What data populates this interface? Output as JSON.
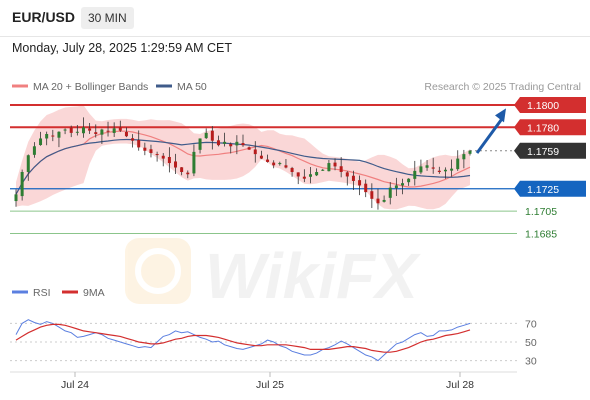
{
  "header": {
    "symbol": "EUR/USD",
    "timeframe": "30 MIN"
  },
  "datetime": "Monday, July 28, 2025 1:29:59 AM CET",
  "legend": {
    "ma20_label": "MA 20 + Bollinger Bands",
    "ma50_label": "MA 50",
    "credit": "Research © 2025 Trading Central"
  },
  "colors": {
    "up": "#2e7d32",
    "down": "#b71c1c",
    "resistance": "#d32f2f",
    "support": "#1565c0",
    "target": "#2e7d32",
    "ma20": "#f08080",
    "ma50": "#3f5b8a",
    "band": "#f8caca",
    "arrow": "#1e5aa8",
    "rsi": "#5b7fe0",
    "rsi_ma": "#d32f2f"
  },
  "chart_data": [
    {
      "type": "candlestick",
      "x_ticks": [
        "Jul 24",
        "Jul 25",
        "Jul 28"
      ],
      "ylim": [
        1.1638,
        1.1808
      ],
      "levels": [
        {
          "label": "1.1800",
          "value": 1.18,
          "kind": "resistance"
        },
        {
          "label": "1.1780",
          "value": 1.178,
          "kind": "resistance"
        },
        {
          "label": "1.1759",
          "value": 1.1759,
          "kind": "current"
        },
        {
          "label": "1.1725",
          "value": 1.1725,
          "kind": "support"
        },
        {
          "label": "1.1705",
          "value": 1.1705,
          "kind": "target"
        },
        {
          "label": "1.1685",
          "value": 1.1685,
          "kind": "target"
        }
      ],
      "current_price": 1.1759,
      "projection": {
        "from": 1.1757,
        "to": 1.1796
      },
      "series": [
        {
          "name": "MA 20 + Bollinger Bands"
        },
        {
          "name": "MA 50"
        }
      ],
      "close": [
        1.172,
        1.174,
        1.1755,
        1.1763,
        1.177,
        1.1774,
        1.1772,
        1.1776,
        1.1778,
        1.1775,
        1.1776,
        1.178,
        1.1777,
        1.1774,
        1.1778,
        1.1776,
        1.1779,
        1.1777,
        1.1772,
        1.1768,
        1.1762,
        1.1759,
        1.1757,
        1.1756,
        1.1752,
        1.1748,
        1.1744,
        1.174,
        1.1738,
        1.1758,
        1.177,
        1.1775,
        1.1768,
        1.1764,
        1.1767,
        1.1763,
        1.1767,
        1.1764,
        1.176,
        1.1756,
        1.1752,
        1.1749,
        1.1746,
        1.1748,
        1.1744,
        1.174,
        1.1736,
        1.1734,
        1.1738,
        1.174,
        1.1742,
        1.1748,
        1.1745,
        1.174,
        1.1736,
        1.1732,
        1.1728,
        1.1722,
        1.1716,
        1.1712,
        1.1715,
        1.1726,
        1.1728,
        1.173,
        1.1734,
        1.1741,
        1.1745,
        1.1746,
        1.1743,
        1.174,
        1.1742,
        1.1743,
        1.1752,
        1.1756,
        1.1759
      ]
    },
    {
      "type": "line",
      "series": [
        {
          "name": "RSI",
          "values": [
            58,
            70,
            74,
            71,
            69,
            72,
            70,
            66,
            62,
            60,
            55,
            56,
            58,
            60,
            58,
            54,
            52,
            50,
            48,
            46,
            44,
            45,
            44,
            50,
            56,
            58,
            62,
            60,
            61,
            58,
            55,
            53,
            50,
            51,
            47,
            45,
            43,
            42,
            44,
            46,
            48,
            52,
            50,
            46,
            44,
            40,
            38,
            36,
            36,
            38,
            42,
            44,
            47,
            51,
            48,
            44,
            40,
            36,
            34,
            30,
            36,
            42,
            48,
            50,
            54,
            58,
            60,
            56,
            57,
            62,
            62,
            63,
            66,
            68,
            70
          ]
        },
        {
          "name": "9MA",
          "values": [
            52,
            56,
            60,
            63,
            66,
            68,
            69,
            69,
            68,
            66,
            64,
            62,
            61,
            60,
            59,
            58,
            57,
            56,
            54,
            52,
            50,
            49,
            48,
            48,
            49,
            51,
            53,
            54,
            56,
            57,
            57,
            57,
            56,
            55,
            53,
            51,
            49,
            48,
            47,
            46,
            46,
            47,
            47,
            47,
            47,
            46,
            45,
            44,
            42,
            42,
            42,
            42,
            43,
            44,
            45,
            45,
            44,
            43,
            41,
            40,
            39,
            39,
            40,
            42,
            44,
            47,
            50,
            52,
            53,
            55,
            57,
            58,
            59,
            61,
            63
          ]
        }
      ],
      "y_ticks": [
        70,
        50,
        30
      ],
      "ylim": [
        22,
        78
      ]
    }
  ]
}
